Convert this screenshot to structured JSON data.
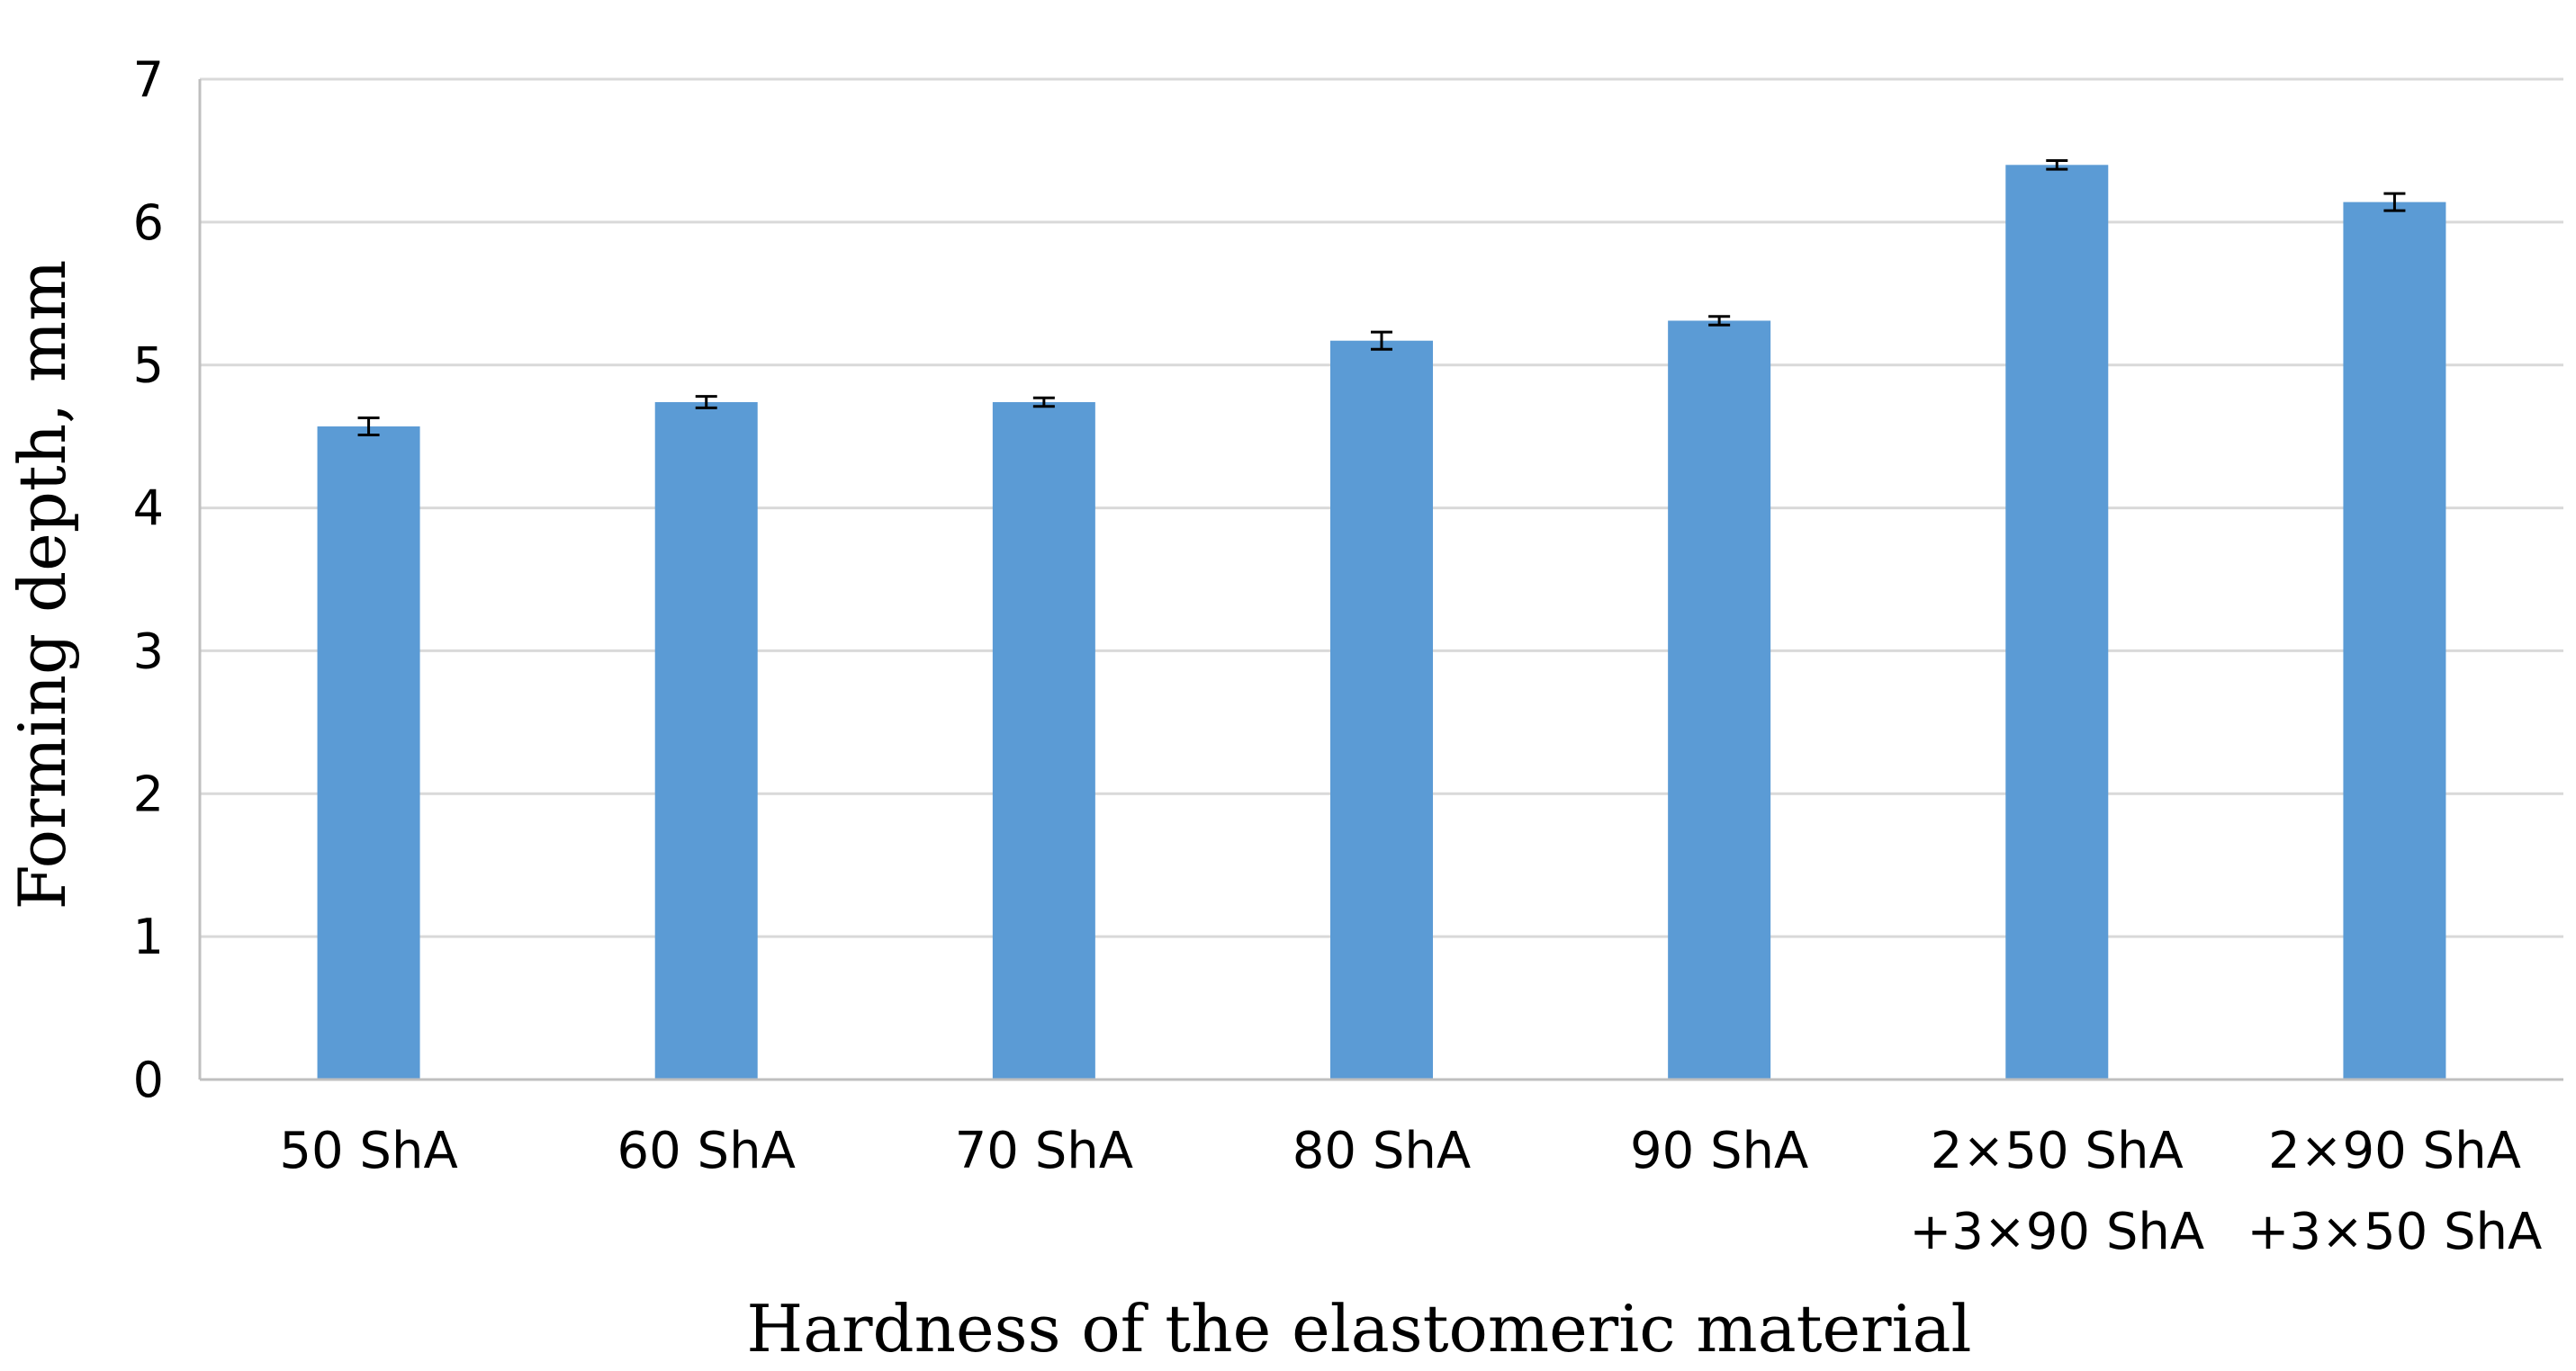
{
  "chart_data": {
    "type": "bar",
    "title": "",
    "xlabel": "Hardness of the elastomeric material",
    "ylabel": "Forming depth, mm",
    "ylim": [
      0,
      7
    ],
    "yticks": [
      "0",
      "1",
      "2",
      "3",
      "4",
      "5",
      "6",
      "7"
    ],
    "grid": true,
    "legend": "none",
    "bar_color": "#5b9bd5",
    "grid_color": "#d9d9d9",
    "axis_color": "#bfbfbf",
    "categories": [
      [
        "50 ShA"
      ],
      [
        "60 ShA"
      ],
      [
        "70 ShA"
      ],
      [
        "80 ShA"
      ],
      [
        "90 ShA"
      ],
      [
        "2×50 ShA",
        "+3×90 ShA"
      ],
      [
        "2×90 ShA",
        "+3×50 ShA"
      ]
    ],
    "values": [
      4.57,
      4.74,
      4.74,
      5.17,
      5.31,
      6.4,
      6.14
    ],
    "errors": [
      0.06,
      0.04,
      0.03,
      0.06,
      0.03,
      0.03,
      0.06
    ]
  }
}
